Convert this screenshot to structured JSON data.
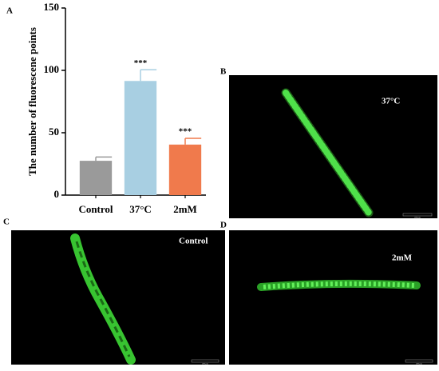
{
  "chart_data": {
    "type": "bar",
    "panel_label": "A",
    "y_label": "The number of fluorescene points",
    "categories": [
      "Control",
      "37°C",
      "2mM"
    ],
    "values": [
      27.5,
      91.5,
      40.5
    ],
    "errors": [
      3,
      9,
      5
    ],
    "significance": [
      null,
      "***",
      "***"
    ],
    "colors": [
      "#9a9a9a",
      "#a8cfe2",
      "#f07a4c"
    ],
    "ylim": [
      0,
      150
    ],
    "yticks": [
      0,
      50,
      100,
      150
    ]
  },
  "figure": {
    "panels": [
      {
        "label": "B",
        "caption": "37°C",
        "scale_bar": "200 μm"
      },
      {
        "label": "C",
        "caption": "Control",
        "scale_bar": "200 μm"
      },
      {
        "label": "D",
        "caption": "2mM",
        "scale_bar": "200 μm"
      }
    ]
  }
}
